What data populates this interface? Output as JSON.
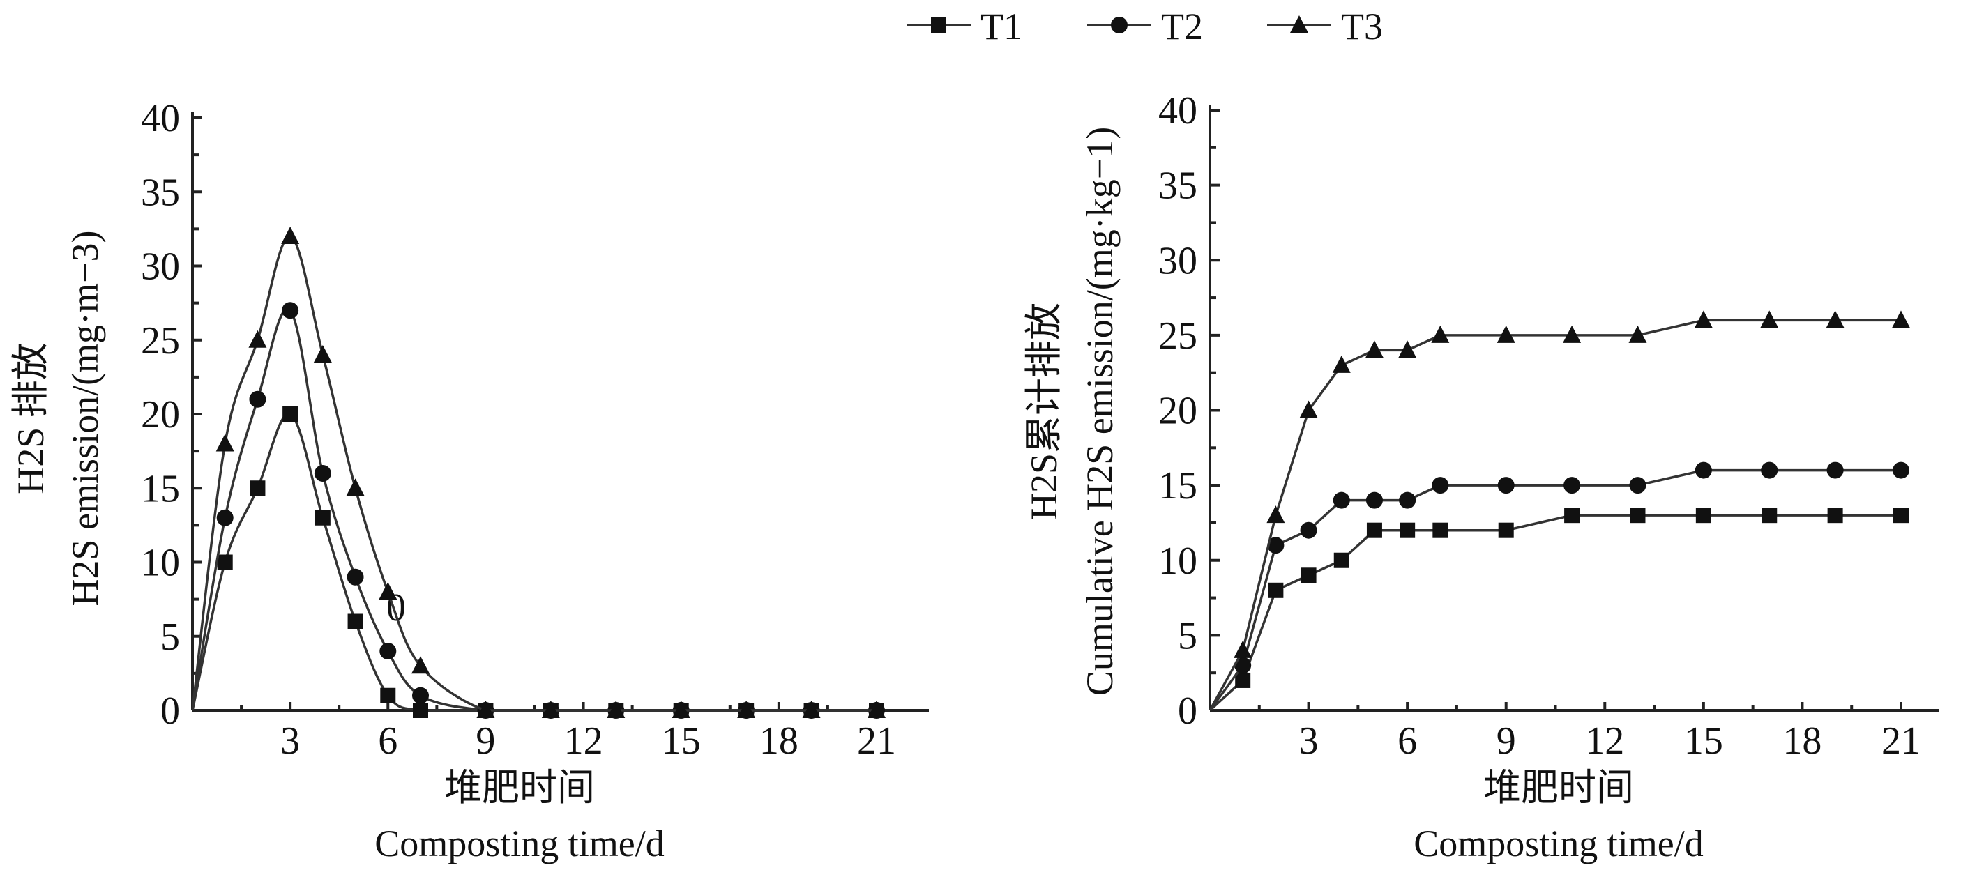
{
  "legend": [
    {
      "name": "T1",
      "marker": "square"
    },
    {
      "name": "T2",
      "marker": "circle"
    },
    {
      "name": "T3",
      "marker": "triangle"
    }
  ],
  "chart_data": [
    {
      "type": "line",
      "smooth": true,
      "ylabel_cn": "H2S 排放",
      "ylabel_en": "H2S emission/(mg·m−3)",
      "xlabel_cn": "堆肥时间",
      "xlabel_en": "Composting time/d",
      "annotation": "0",
      "xlim": [
        0,
        23
      ],
      "ylim": [
        0,
        40
      ],
      "xticks": [
        3,
        6,
        9,
        12,
        15,
        18,
        21
      ],
      "yticks": [
        0,
        5,
        10,
        15,
        20,
        25,
        30,
        35,
        40
      ],
      "series": [
        {
          "name": "T1",
          "x": [
            0,
            1,
            2,
            3,
            4,
            5,
            6,
            7,
            9,
            11,
            13,
            15,
            17,
            19,
            21
          ],
          "y": [
            0,
            10,
            15,
            20,
            13,
            6,
            1,
            0,
            0,
            0,
            0,
            0,
            0,
            0,
            0
          ]
        },
        {
          "name": "T2",
          "x": [
            0,
            1,
            2,
            3,
            4,
            5,
            6,
            7,
            9,
            11,
            13,
            15,
            17,
            19,
            21
          ],
          "y": [
            0,
            13,
            21,
            27,
            16,
            9,
            4,
            1,
            0,
            0,
            0,
            0,
            0,
            0,
            0
          ]
        },
        {
          "name": "T3",
          "x": [
            0,
            1,
            2,
            3,
            4,
            5,
            6,
            7,
            9,
            11,
            13,
            15,
            17,
            19,
            21
          ],
          "y": [
            0,
            18,
            25,
            32,
            24,
            15,
            8,
            3,
            0,
            0,
            0,
            0,
            0,
            0,
            0
          ]
        }
      ]
    },
    {
      "type": "line",
      "smooth": false,
      "ylabel_cn": "H2S累计排放",
      "ylabel_en": "Cumulative H2S emission/(mg·kg−1)",
      "xlabel_cn": "堆肥时间",
      "xlabel_en": "Composting time/d",
      "xlim": [
        0,
        22
      ],
      "ylim": [
        0,
        40
      ],
      "xticks": [
        3,
        6,
        9,
        12,
        15,
        18,
        21
      ],
      "yticks": [
        0,
        5,
        10,
        15,
        20,
        25,
        30,
        35,
        40
      ],
      "series": [
        {
          "name": "T1",
          "x": [
            0,
            1,
            2,
            3,
            4,
            5,
            6,
            7,
            9,
            11,
            13,
            15,
            17,
            19,
            21
          ],
          "y": [
            0,
            2,
            8,
            9,
            10,
            12,
            12,
            12,
            12,
            13,
            13,
            13,
            13,
            13,
            13
          ]
        },
        {
          "name": "T2",
          "x": [
            0,
            1,
            2,
            3,
            4,
            5,
            6,
            7,
            9,
            11,
            13,
            15,
            17,
            19,
            21
          ],
          "y": [
            0,
            3,
            11,
            12,
            14,
            14,
            14,
            15,
            15,
            15,
            15,
            16,
            16,
            16,
            16
          ]
        },
        {
          "name": "T3",
          "x": [
            0,
            1,
            2,
            3,
            4,
            5,
            6,
            7,
            9,
            11,
            13,
            15,
            17,
            19,
            21
          ],
          "y": [
            0,
            4,
            13,
            20,
            23,
            24,
            24,
            25,
            25,
            25,
            25,
            26,
            26,
            26,
            26
          ]
        }
      ]
    }
  ]
}
